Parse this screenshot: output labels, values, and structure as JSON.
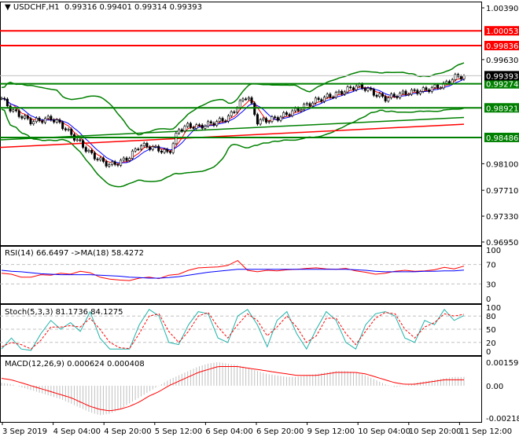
{
  "header": {
    "symbol": "USDCHF,H1",
    "open": "0.99316",
    "high": "0.99401",
    "low": "0.99314",
    "close": "0.99393"
  },
  "price_axis": {
    "ticks": [
      "1.00390",
      "0.99630",
      "0.98100",
      "0.97710",
      "0.97330",
      "0.96950"
    ],
    "tick_values": [
      1.0039,
      0.9963,
      0.981,
      0.9771,
      0.9733,
      0.9695
    ],
    "range": [
      0.9695,
      1.0039
    ]
  },
  "levels": [
    {
      "label": "1.00053",
      "value": 1.00053,
      "color": "#ff0000"
    },
    {
      "label": "0.99836",
      "value": 0.99836,
      "color": "#ff0000"
    },
    {
      "label": "0.99274",
      "value": 0.99274,
      "color": "#008000"
    },
    {
      "label": "0.98921",
      "value": 0.98921,
      "color": "#008000"
    },
    {
      "label": "0.98486",
      "value": 0.98486,
      "color": "#008000"
    }
  ],
  "current_price": {
    "label": "0.99393",
    "value": 0.99393
  },
  "trendlines": [
    {
      "color": "#008000",
      "from": 0.9845,
      "to": 0.9878
    },
    {
      "color": "#ff0000",
      "from": 0.9834,
      "to": 0.9868
    }
  ],
  "closes": [
    0.9906,
    0.9889,
    0.988,
    0.9872,
    0.9874,
    0.9877,
    0.9868,
    0.9854,
    0.984,
    0.9825,
    0.9815,
    0.9808,
    0.9812,
    0.982,
    0.9837,
    0.9835,
    0.9831,
    0.9825,
    0.986,
    0.9866,
    0.9864,
    0.9868,
    0.9872,
    0.9877,
    0.9895,
    0.9912,
    0.9872,
    0.9874,
    0.9877,
    0.9883,
    0.9889,
    0.9896,
    0.9903,
    0.9908,
    0.9912,
    0.9918,
    0.9924,
    0.9921,
    0.9912,
    0.9906,
    0.991,
    0.9914,
    0.9916,
    0.9918,
    0.9922,
    0.9926,
    0.9937,
    0.9939
  ],
  "rsi": {
    "label": "RSI(14) 66.6497",
    "ma_label": "->MA(18) 58.4272",
    "ticks": [
      "100",
      "70",
      "30",
      "0"
    ],
    "levels": [
      70,
      30
    ],
    "values": [
      52,
      50,
      44,
      44,
      49,
      48,
      52,
      50,
      56,
      53,
      44,
      40,
      38,
      37,
      42,
      44,
      41,
      48,
      50,
      58,
      63,
      64,
      65,
      68,
      78,
      58,
      55,
      58,
      57,
      59,
      60,
      62,
      63,
      61,
      60,
      62,
      57,
      54,
      50,
      52,
      56,
      58,
      56,
      57,
      59,
      64,
      61,
      66.6
    ],
    "ma": [
      58,
      56,
      55,
      53,
      51,
      50,
      49,
      49,
      49,
      49,
      48,
      47,
      46,
      44,
      43,
      42,
      42,
      43,
      45,
      48,
      51,
      54,
      56,
      58,
      60,
      60,
      60,
      60,
      60,
      60,
      60,
      60,
      60,
      60,
      60,
      60,
      59,
      58,
      56,
      55,
      55,
      55,
      55,
      56,
      56,
      57,
      57,
      58.4
    ]
  },
  "stoch": {
    "label": "Stoch(5,3,3) 81.1736 84.1275",
    "ticks": [
      "100",
      "80",
      "50",
      "20",
      "0"
    ],
    "levels": [
      80,
      50,
      20
    ],
    "main": [
      5,
      30,
      5,
      2,
      40,
      70,
      50,
      65,
      45,
      90,
      30,
      5,
      5,
      5,
      60,
      95,
      80,
      20,
      15,
      60,
      90,
      85,
      30,
      20,
      80,
      95,
      60,
      10,
      70,
      90,
      40,
      5,
      50,
      90,
      70,
      20,
      5,
      60,
      85,
      90,
      80,
      30,
      20,
      70,
      60,
      95,
      70,
      81
    ],
    "signal": [
      10,
      20,
      15,
      5,
      25,
      55,
      55,
      58,
      55,
      75,
      50,
      20,
      8,
      6,
      40,
      80,
      85,
      45,
      20,
      45,
      80,
      88,
      55,
      30,
      60,
      85,
      70,
      35,
      55,
      80,
      55,
      20,
      35,
      75,
      75,
      40,
      15,
      45,
      75,
      88,
      85,
      50,
      30,
      55,
      65,
      85,
      80,
      84
    ]
  },
  "macd": {
    "label": "MACD(12,26,9) 0.000624 0.000408",
    "ticks": [
      "0.001593",
      "0.00",
      "-0.002187"
    ],
    "range": [
      -0.002187,
      0.001593
    ],
    "hist": [
      0.0002,
      0.0001,
      -0.0001,
      -0.0003,
      -0.0005,
      -0.0007,
      -0.0009,
      -0.0012,
      -0.0015,
      -0.0018,
      -0.002,
      -0.0019,
      -0.0016,
      -0.0012,
      -0.0008,
      -0.0004,
      0.0,
      0.0004,
      0.0007,
      0.001,
      0.0013,
      0.0015,
      0.0016,
      0.0015,
      0.0014,
      0.0012,
      0.001,
      0.0008,
      0.0007,
      0.0006,
      0.0006,
      0.0007,
      0.0008,
      0.0009,
      0.001,
      0.001,
      0.0009,
      0.0007,
      0.0004,
      0.0001,
      -0.0001,
      0.0,
      0.0002,
      0.0003,
      0.0004,
      0.0005,
      0.0006,
      0.0006
    ],
    "signal": [
      0.0005,
      0.0004,
      0.0002,
      0.0,
      -0.0002,
      -0.0004,
      -0.0006,
      -0.0008,
      -0.0011,
      -0.0014,
      -0.0016,
      -0.0017,
      -0.0016,
      -0.0014,
      -0.0011,
      -0.0007,
      -0.0004,
      0.0,
      0.0003,
      0.0006,
      0.0009,
      0.0011,
      0.0013,
      0.0013,
      0.0013,
      0.0012,
      0.0011,
      0.001,
      0.0009,
      0.0008,
      0.0007,
      0.0007,
      0.0007,
      0.0008,
      0.0009,
      0.0009,
      0.0009,
      0.0008,
      0.0006,
      0.0004,
      0.0002,
      0.0001,
      0.0001,
      0.0002,
      0.0003,
      0.0004,
      0.0004,
      0.0004
    ]
  },
  "time_axis": [
    "3 Sep 2019",
    "4 Sep 04:00",
    "4 Sep 20:00",
    "5 Sep 12:00",
    "6 Sep 04:00",
    "6 Sep 20:00",
    "9 Sep 12:00",
    "10 Sep 04:00",
    "10 Sep 20:00",
    "11 Sep 12:00"
  ],
  "colors": {
    "bull": "#008000",
    "rsi": "#ff0000",
    "rsi_ma": "#0000ff",
    "stoch_main": "#20b2aa",
    "stoch_signal": "#ff0000",
    "macd_hist": "#c0c0c0",
    "macd_signal": "#ff0000",
    "bands": "#008000"
  }
}
